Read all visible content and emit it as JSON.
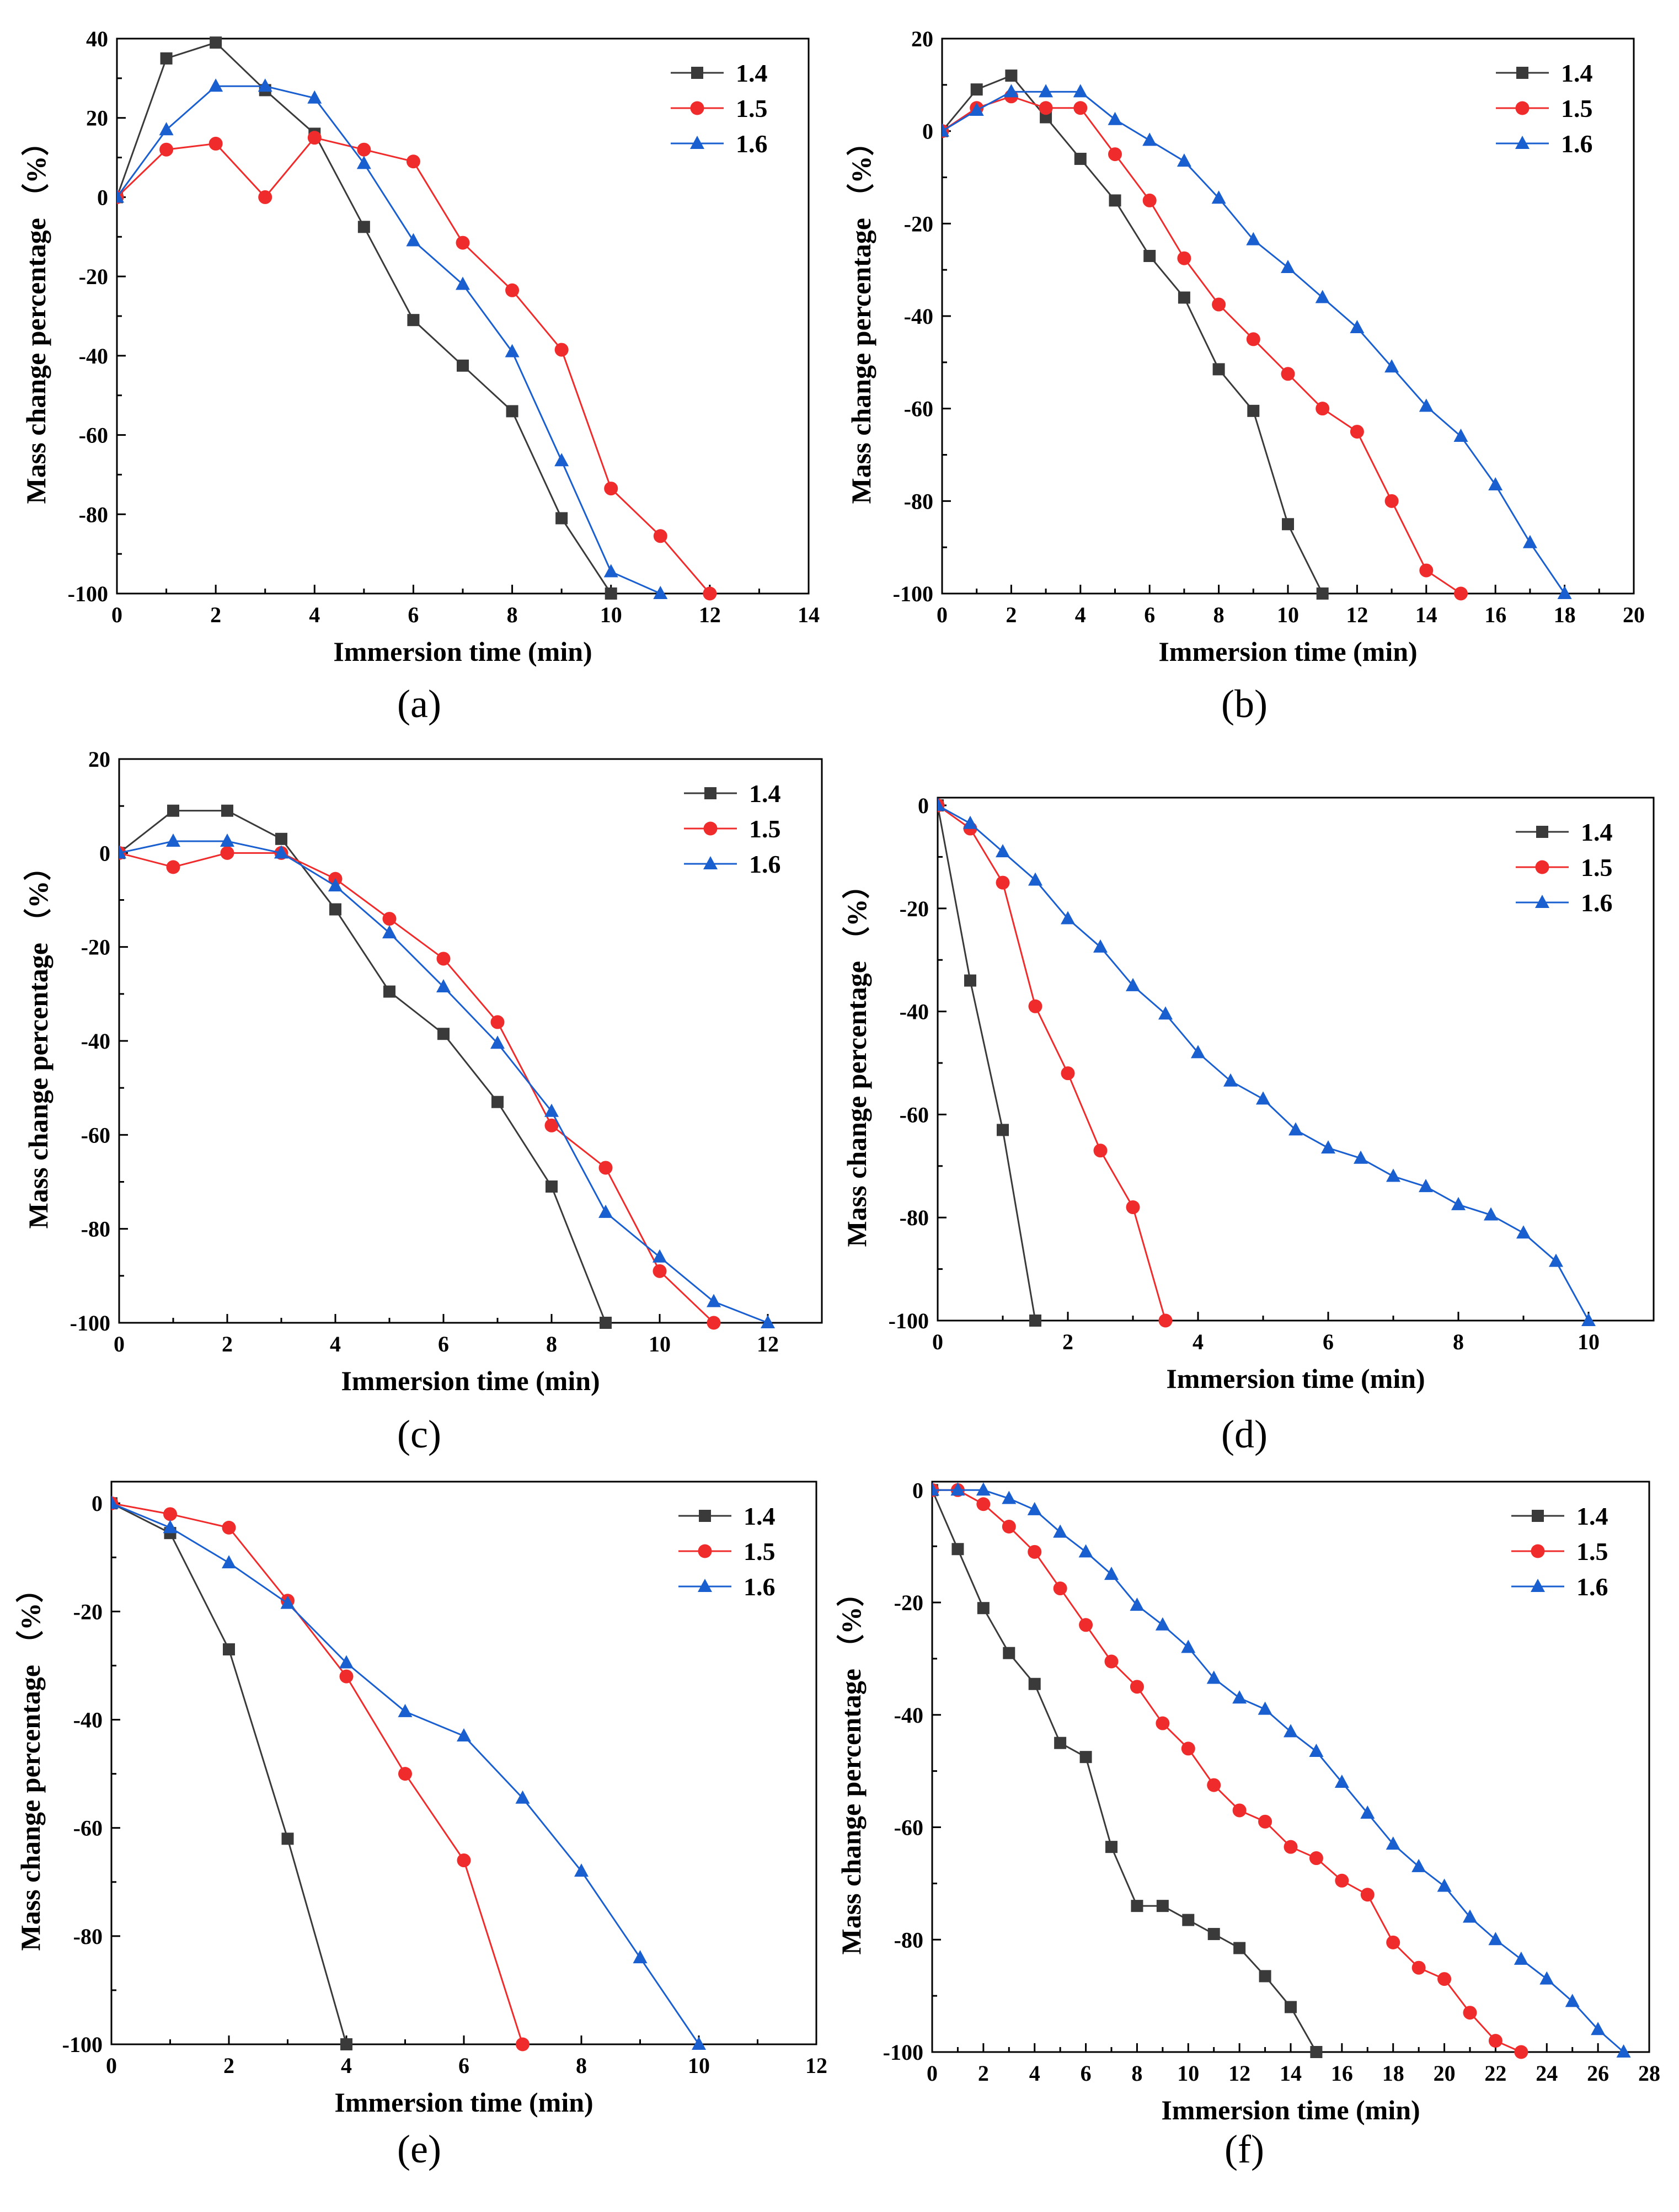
{
  "colors": {
    "s14": "#3a3a3a",
    "s15": "#f02b2b",
    "s16": "#1a5fd0"
  },
  "chart_data": [
    {
      "type": "line",
      "panel_label": "(a)",
      "xlabel": "Immersion time (min)",
      "ylabel": "Mass change percentage （%）",
      "xlim": [
        0,
        14
      ],
      "ylim": [
        -100,
        40
      ],
      "xticks": [
        0,
        2,
        4,
        6,
        8,
        10,
        12,
        14
      ],
      "yticks": [
        -100,
        -80,
        -60,
        -40,
        -20,
        0,
        20,
        40
      ],
      "legend_position": "top-right",
      "series": [
        {
          "name": "1.4",
          "x": [
            0,
            1,
            2,
            3,
            4,
            5,
            6,
            7,
            8,
            9,
            10
          ],
          "y": [
            0,
            35,
            39,
            27,
            16,
            -7.5,
            -31,
            -42.5,
            -54,
            -81,
            -100
          ]
        },
        {
          "name": "1.5",
          "x": [
            0,
            1,
            2,
            3,
            4,
            5,
            6,
            7,
            8,
            9,
            10,
            11,
            12
          ],
          "y": [
            0,
            12,
            13.5,
            0,
            15,
            12,
            9,
            -11.5,
            -23.5,
            -38.5,
            -73.5,
            -85.5,
            -100
          ]
        },
        {
          "name": "1.6",
          "x": [
            0,
            1,
            2,
            3,
            4,
            5,
            6,
            7,
            8,
            9,
            10,
            11
          ],
          "y": [
            0,
            17,
            28,
            28,
            25,
            8.5,
            -11,
            -22,
            -39,
            -66.5,
            -94.5,
            -100
          ]
        }
      ]
    },
    {
      "type": "line",
      "panel_label": "(b)",
      "xlabel": "Immersion time (min)",
      "ylabel": "Mass change percentage （%）",
      "xlim": [
        0,
        20
      ],
      "ylim": [
        -100,
        20
      ],
      "xticks": [
        0,
        2,
        4,
        6,
        8,
        10,
        12,
        14,
        16,
        18,
        20
      ],
      "yticks": [
        -100,
        -80,
        -60,
        -40,
        -20,
        0,
        20
      ],
      "legend_position": "top-right",
      "series": [
        {
          "name": "1.4",
          "x": [
            0,
            1,
            2,
            3,
            4,
            5,
            6,
            7,
            8,
            9,
            10,
            11
          ],
          "y": [
            0,
            9,
            12,
            3,
            -6,
            -15,
            -27,
            -36,
            -51.5,
            -60.5,
            -85,
            -100
          ]
        },
        {
          "name": "1.5",
          "x": [
            0,
            1,
            2,
            3,
            4,
            5,
            6,
            7,
            8,
            9,
            10,
            11,
            12,
            13,
            14,
            15
          ],
          "y": [
            0,
            5,
            7.5,
            5,
            5,
            -5,
            -15,
            -27.5,
            -37.5,
            -45,
            -52.5,
            -60,
            -65,
            -80,
            -95,
            -100
          ]
        },
        {
          "name": "1.6",
          "x": [
            0,
            1,
            2,
            3,
            4,
            5,
            6,
            7,
            8,
            9,
            10,
            11,
            12,
            13,
            14,
            15,
            16,
            17,
            18
          ],
          "y": [
            0,
            4.5,
            8.5,
            8.5,
            8.5,
            2.5,
            -2,
            -6.5,
            -14.5,
            -23.5,
            -29.5,
            -36,
            -42.5,
            -51,
            -59.5,
            -66,
            -76.5,
            -89,
            -100
          ]
        }
      ]
    },
    {
      "type": "line",
      "panel_label": "(c)",
      "xlabel": "Immersion time (min)",
      "ylabel": "Mass change percentage （%）",
      "xlim": [
        0,
        13
      ],
      "ylim": [
        -100,
        20
      ],
      "xticks": [
        0,
        2,
        4,
        6,
        8,
        10,
        12
      ],
      "yticks": [
        -100,
        -80,
        -60,
        -40,
        -20,
        0,
        20
      ],
      "legend_position": "top-right",
      "series": [
        {
          "name": "1.4",
          "x": [
            0,
            1,
            2,
            3,
            4,
            5,
            6,
            7,
            8,
            9
          ],
          "y": [
            0,
            9,
            9,
            3,
            -12,
            -29.5,
            -38.5,
            -53,
            -71,
            -100
          ]
        },
        {
          "name": "1.5",
          "x": [
            0,
            1,
            2,
            3,
            4,
            5,
            6,
            7,
            8,
            9,
            10,
            11
          ],
          "y": [
            0,
            -3,
            0,
            0,
            -5.5,
            -14,
            -22.5,
            -36,
            -58,
            -67,
            -89,
            -100
          ]
        },
        {
          "name": "1.6",
          "x": [
            0,
            1,
            2,
            3,
            4,
            5,
            6,
            7,
            8,
            9,
            10,
            11,
            12
          ],
          "y": [
            0,
            2.5,
            2.5,
            0,
            -7,
            -17,
            -28.5,
            -40.5,
            -55,
            -76.5,
            -86,
            -95.5,
            -100
          ]
        }
      ]
    },
    {
      "type": "line",
      "panel_label": "(d)",
      "xlabel": "Immersion time (min)",
      "ylabel": "Mass change percentage （%）",
      "xlim": [
        0,
        11
      ],
      "ylim": [
        -100,
        1.5
      ],
      "xticks": [
        0,
        2,
        4,
        6,
        8,
        10
      ],
      "yticks": [
        -100,
        -80,
        -60,
        -40,
        -20,
        0
      ],
      "legend_position": "top-right",
      "series": [
        {
          "name": "1.4",
          "x": [
            0,
            0.5,
            1,
            1.5
          ],
          "y": [
            0,
            -34,
            -63,
            -100
          ]
        },
        {
          "name": "1.5",
          "x": [
            0,
            0.5,
            1,
            1.5,
            2,
            2.5,
            3,
            3.5
          ],
          "y": [
            0,
            -4.5,
            -15,
            -39,
            -52,
            -67,
            -78,
            -100
          ]
        },
        {
          "name": "1.6",
          "x": [
            0,
            0.5,
            1,
            1.5,
            2,
            2.5,
            3,
            3.5,
            4,
            4.5,
            5,
            5.5,
            6,
            6.5,
            7,
            7.5,
            8,
            8.5,
            9,
            9.5,
            10
          ],
          "y": [
            0,
            -3.5,
            -9,
            -14.5,
            -22,
            -27.5,
            -35,
            -40.5,
            -48,
            -53.5,
            -57,
            -63,
            -66.5,
            -68.5,
            -72,
            -74,
            -77.5,
            -79.5,
            -83,
            -88.5,
            -100
          ]
        }
      ]
    },
    {
      "type": "line",
      "panel_label": "(e)",
      "xlabel": "Immersion time (min)",
      "ylabel": "Mass change percentage （%）",
      "xlim": [
        0,
        12
      ],
      "ylim": [
        -100,
        4
      ],
      "xticks": [
        0,
        2,
        4,
        6,
        8,
        10,
        12
      ],
      "yticks": [
        -100,
        -80,
        -60,
        -40,
        -20,
        0
      ],
      "legend_position": "top-right",
      "series": [
        {
          "name": "1.4",
          "x": [
            0,
            1,
            2,
            3,
            4
          ],
          "y": [
            0,
            -5.5,
            -27,
            -62,
            -100
          ]
        },
        {
          "name": "1.5",
          "x": [
            0,
            1,
            2,
            3,
            4,
            5,
            6,
            7
          ],
          "y": [
            0,
            -2,
            -4.5,
            -18,
            -32,
            -50,
            -66,
            -100
          ]
        },
        {
          "name": "1.6",
          "x": [
            0,
            1,
            2,
            3,
            4,
            5,
            6,
            7,
            8,
            9,
            10
          ],
          "y": [
            0,
            -4.5,
            -11,
            -18.5,
            -29.5,
            -38.5,
            -43,
            -54.5,
            -68,
            -84,
            -100
          ]
        }
      ]
    },
    {
      "type": "line",
      "panel_label": "(f)",
      "xlabel": "Immersion time (min)",
      "ylabel": "Mass change percentage （%）",
      "xlim": [
        0,
        28
      ],
      "ylim": [
        -100,
        1.5
      ],
      "xticks": [
        0,
        2,
        4,
        6,
        8,
        10,
        12,
        14,
        16,
        18,
        20,
        22,
        24,
        26,
        28
      ],
      "yticks": [
        -100,
        -80,
        -60,
        -40,
        -20,
        0
      ],
      "legend_position": "top-right",
      "series": [
        {
          "name": "1.4",
          "x": [
            0,
            1,
            2,
            3,
            4,
            5,
            6,
            7,
            8,
            9,
            10,
            11,
            12,
            13,
            14,
            15
          ],
          "y": [
            0,
            -10.5,
            -21,
            -29,
            -34.5,
            -45,
            -47.5,
            -63.5,
            -74,
            -74,
            -76.5,
            -79,
            -81.5,
            -86.5,
            -92,
            -100
          ]
        },
        {
          "name": "1.5",
          "x": [
            0,
            1,
            2,
            3,
            4,
            5,
            6,
            7,
            8,
            9,
            10,
            11,
            12,
            13,
            14,
            15,
            16,
            17,
            18,
            19,
            20,
            21,
            22,
            23
          ],
          "y": [
            0,
            0,
            -2.5,
            -6.5,
            -11,
            -17.5,
            -24,
            -30.5,
            -35,
            -41.5,
            -46,
            -52.5,
            -57,
            -59,
            -63.5,
            -65.5,
            -69.5,
            -72,
            -80.5,
            -85,
            -87,
            -93,
            -98,
            -100
          ]
        },
        {
          "name": "1.6",
          "x": [
            0,
            1,
            2,
            3,
            4,
            5,
            6,
            7,
            8,
            9,
            10,
            11,
            12,
            13,
            14,
            15,
            16,
            17,
            18,
            19,
            20,
            21,
            22,
            23,
            24,
            25,
            26,
            27
          ],
          "y": [
            0,
            0,
            0,
            -1.5,
            -3.5,
            -7.5,
            -11,
            -15,
            -20.5,
            -24,
            -28,
            -33.5,
            -37,
            -39,
            -43,
            -46.5,
            -52,
            -57.5,
            -63,
            -67,
            -70.5,
            -76,
            -80,
            -83.5,
            -87,
            -91,
            -96,
            -100
          ]
        }
      ]
    }
  ]
}
